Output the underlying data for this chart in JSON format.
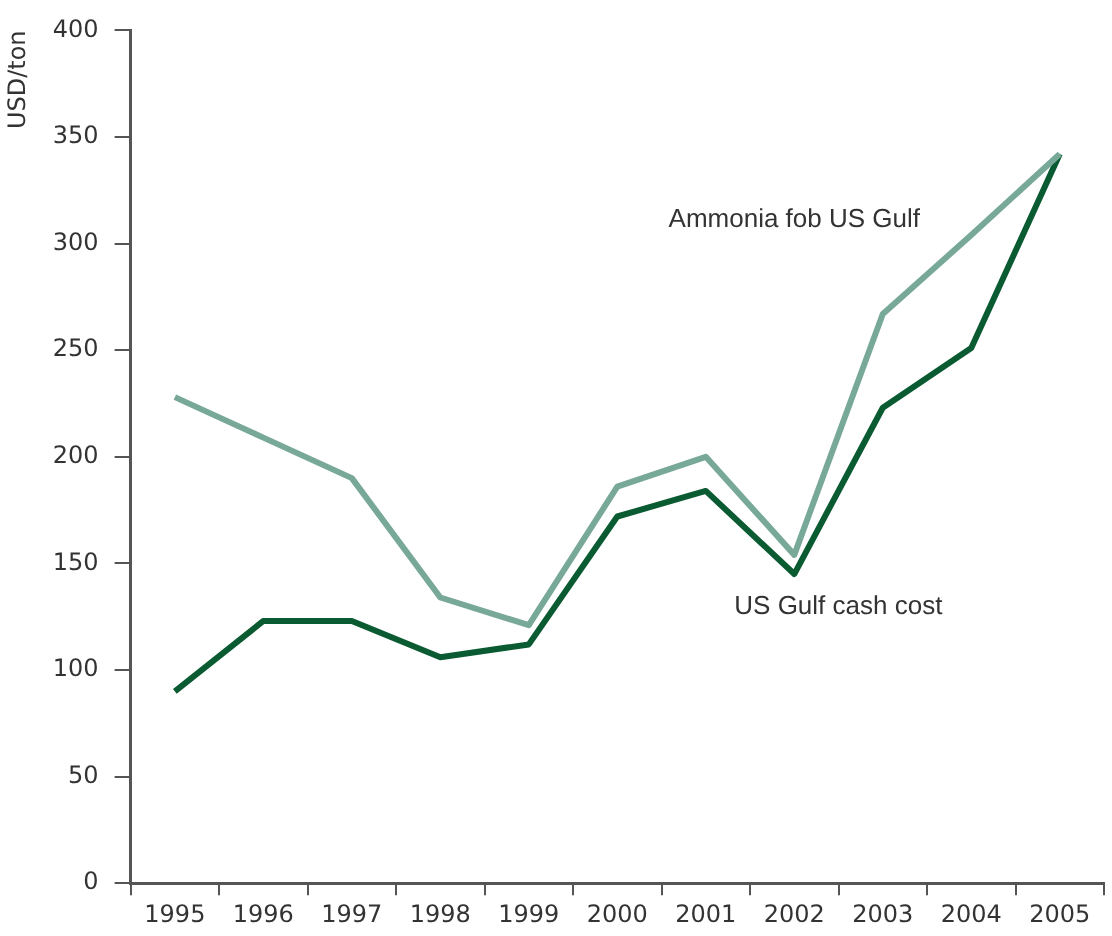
{
  "chart_data": {
    "type": "line",
    "ylabel": "USD/ton",
    "categories": [
      "1995",
      "1996",
      "1997",
      "1998",
      "1999",
      "2000",
      "2001",
      "2002",
      "2003",
      "2004",
      "2005"
    ],
    "ylim": [
      0,
      400
    ],
    "yticks": [
      0,
      50,
      100,
      150,
      200,
      250,
      300,
      350,
      400
    ],
    "grid": false,
    "legend": false,
    "marker": "none",
    "line_style": "solid",
    "series": [
      {
        "name": "Ammonia fob US Gulf",
        "color": "#78a898",
        "values": [
          228,
          209,
          190,
          134,
          121,
          186,
          200,
          154,
          267,
          304,
          342
        ]
      },
      {
        "name": "US Gulf cash cost",
        "color": "#0a5a32",
        "values": [
          90,
          123,
          123,
          106,
          112,
          172,
          184,
          145,
          223,
          251,
          342
        ]
      }
    ]
  }
}
